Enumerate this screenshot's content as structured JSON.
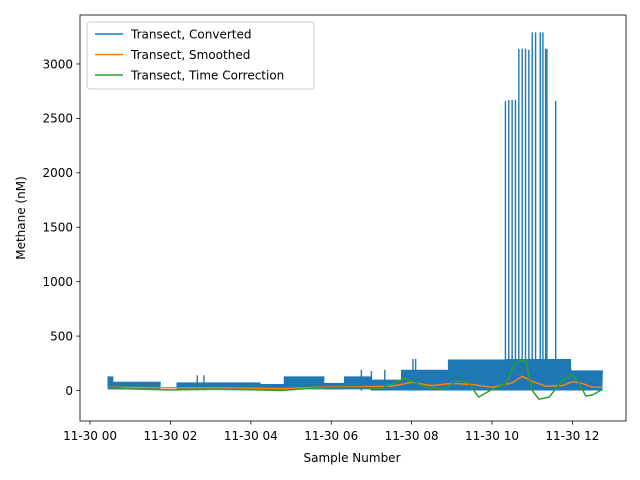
{
  "chart_data": {
    "type": "line",
    "xlabel": "Sample Number",
    "ylabel": "Methane (nM)",
    "x_is_time": true,
    "xlim": [
      "2023-11-29T23:45",
      "2023-11-30T13:20"
    ],
    "ylim": [
      -280,
      3450
    ],
    "xtick_labels": [
      {
        "t": "2023-11-30T00:00",
        "label": "11-30 00"
      },
      {
        "t": "2023-11-30T02:00",
        "label": "11-30 02"
      },
      {
        "t": "2023-11-30T04:00",
        "label": "11-30 04"
      },
      {
        "t": "2023-11-30T06:00",
        "label": "11-30 06"
      },
      {
        "t": "2023-11-30T08:00",
        "label": "11-30 08"
      },
      {
        "t": "2023-11-30T10:00",
        "label": "11-30 10"
      },
      {
        "t": "2023-11-30T12:00",
        "label": "11-30 12"
      }
    ],
    "ytick_labels": [
      {
        "v": 0,
        "label": "0"
      },
      {
        "v": 500,
        "label": "500"
      },
      {
        "v": 1000,
        "label": "1000"
      },
      {
        "v": 1500,
        "label": "1500"
      },
      {
        "v": 2000,
        "label": "2000"
      },
      {
        "v": 2500,
        "label": "2500"
      },
      {
        "v": 3000,
        "label": "3000"
      }
    ],
    "legend_position": "upper left",
    "series": [
      {
        "name": "Transect, Converted",
        "color": "#1f77b4",
        "style": "dense-oscillating",
        "bands": [
          {
            "start": "2023-11-30T00:27",
            "end": "2023-11-30T00:35",
            "low": 10,
            "high": 130
          },
          {
            "start": "2023-11-30T00:35",
            "end": "2023-11-30T01:45",
            "low": 10,
            "high": 80
          },
          {
            "start": "2023-11-30T02:10",
            "end": "2023-11-30T04:15",
            "low": 5,
            "high": 75
          },
          {
            "start": "2023-11-30T04:15",
            "end": "2023-11-30T04:50",
            "low": 0,
            "high": 60
          },
          {
            "start": "2023-11-30T04:50",
            "end": "2023-11-30T05:50",
            "low": 10,
            "high": 130
          },
          {
            "start": "2023-11-30T05:50",
            "end": "2023-11-30T06:20",
            "low": 10,
            "high": 70
          },
          {
            "start": "2023-11-30T06:20",
            "end": "2023-11-30T07:00",
            "low": 10,
            "high": 130
          },
          {
            "start": "2023-11-30T07:00",
            "end": "2023-11-30T07:45",
            "low": 0,
            "high": 100
          },
          {
            "start": "2023-11-30T07:45",
            "end": "2023-11-30T08:55",
            "low": 0,
            "high": 190
          },
          {
            "start": "2023-11-30T08:55",
            "end": "2023-11-30T10:22",
            "low": 0,
            "high": 285
          },
          {
            "start": "2023-11-30T10:22",
            "end": "2023-11-30T11:58",
            "low": 0,
            "high": 290
          },
          {
            "start": "2023-11-30T11:58",
            "end": "2023-11-30T12:45",
            "low": 0,
            "high": 185
          }
        ],
        "spikes": [
          {
            "t": "2023-11-30T02:40",
            "v": 140
          },
          {
            "t": "2023-11-30T02:50",
            "v": 140
          },
          {
            "t": "2023-11-30T06:45",
            "v": 190
          },
          {
            "t": "2023-11-30T07:00",
            "v": 180
          },
          {
            "t": "2023-11-30T07:20",
            "v": 190
          },
          {
            "t": "2023-11-30T08:02",
            "v": 290
          },
          {
            "t": "2023-11-30T08:06",
            "v": 290
          },
          {
            "t": "2023-11-30T10:20",
            "v": 2660
          },
          {
            "t": "2023-11-30T10:25",
            "v": 2670
          },
          {
            "t": "2023-11-30T10:30",
            "v": 2670
          },
          {
            "t": "2023-11-30T10:35",
            "v": 2670
          },
          {
            "t": "2023-11-30T10:40",
            "v": 3140
          },
          {
            "t": "2023-11-30T10:45",
            "v": 3140
          },
          {
            "t": "2023-11-30T10:50",
            "v": 3140
          },
          {
            "t": "2023-11-30T10:55",
            "v": 3130
          },
          {
            "t": "2023-11-30T11:00",
            "v": 3290
          },
          {
            "t": "2023-11-30T11:05",
            "v": 3290
          },
          {
            "t": "2023-11-30T11:12",
            "v": 3290
          },
          {
            "t": "2023-11-30T11:16",
            "v": 3290
          },
          {
            "t": "2023-11-30T11:20",
            "v": 3140
          },
          {
            "t": "2023-11-30T11:22",
            "v": 3140
          },
          {
            "t": "2023-11-30T11:35",
            "v": 2660
          }
        ]
      },
      {
        "name": "Transect, Smoothed",
        "color": "#ff7f0e",
        "points": [
          [
            "2023-11-30T00:27",
            30
          ],
          [
            "2023-11-30T01:00",
            28
          ],
          [
            "2023-11-30T02:00",
            25
          ],
          [
            "2023-11-30T03:00",
            25
          ],
          [
            "2023-11-30T04:00",
            22
          ],
          [
            "2023-11-30T04:45",
            18
          ],
          [
            "2023-11-30T05:30",
            28
          ],
          [
            "2023-11-30T06:30",
            35
          ],
          [
            "2023-11-30T07:30",
            40
          ],
          [
            "2023-11-30T08:00",
            75
          ],
          [
            "2023-11-30T08:30",
            45
          ],
          [
            "2023-11-30T09:00",
            65
          ],
          [
            "2023-11-30T09:30",
            55
          ],
          [
            "2023-11-30T10:00",
            30
          ],
          [
            "2023-11-30T10:30",
            70
          ],
          [
            "2023-11-30T10:45",
            130
          ],
          [
            "2023-11-30T11:00",
            85
          ],
          [
            "2023-11-30T11:20",
            40
          ],
          [
            "2023-11-30T11:45",
            45
          ],
          [
            "2023-11-30T12:00",
            80
          ],
          [
            "2023-11-30T12:15",
            65
          ],
          [
            "2023-11-30T12:30",
            30
          ],
          [
            "2023-11-30T12:45",
            30
          ]
        ]
      },
      {
        "name": "Transect, Time Correction",
        "color": "#2ca02c",
        "points": [
          [
            "2023-11-30T00:27",
            30
          ],
          [
            "2023-11-30T01:00",
            15
          ],
          [
            "2023-11-30T02:00",
            5
          ],
          [
            "2023-11-30T03:00",
            12
          ],
          [
            "2023-11-30T04:00",
            8
          ],
          [
            "2023-11-30T04:45",
            0
          ],
          [
            "2023-11-30T05:30",
            20
          ],
          [
            "2023-11-30T06:30",
            30
          ],
          [
            "2023-11-30T07:15",
            20
          ],
          [
            "2023-11-30T07:50",
            110
          ],
          [
            "2023-11-30T08:20",
            35
          ],
          [
            "2023-11-30T08:45",
            15
          ],
          [
            "2023-11-30T09:10",
            90
          ],
          [
            "2023-11-30T09:25",
            70
          ],
          [
            "2023-11-30T09:40",
            -60
          ],
          [
            "2023-11-30T10:00",
            10
          ],
          [
            "2023-11-30T10:20",
            60
          ],
          [
            "2023-11-30T10:35",
            260
          ],
          [
            "2023-11-30T10:50",
            280
          ],
          [
            "2023-11-30T11:00",
            0
          ],
          [
            "2023-11-30T11:10",
            -80
          ],
          [
            "2023-11-30T11:25",
            -60
          ],
          [
            "2023-11-30T11:45",
            90
          ],
          [
            "2023-11-30T12:00",
            150
          ],
          [
            "2023-11-30T12:10",
            70
          ],
          [
            "2023-11-30T12:20",
            -50
          ],
          [
            "2023-11-30T12:30",
            -40
          ],
          [
            "2023-11-30T12:45",
            10
          ]
        ]
      }
    ]
  }
}
